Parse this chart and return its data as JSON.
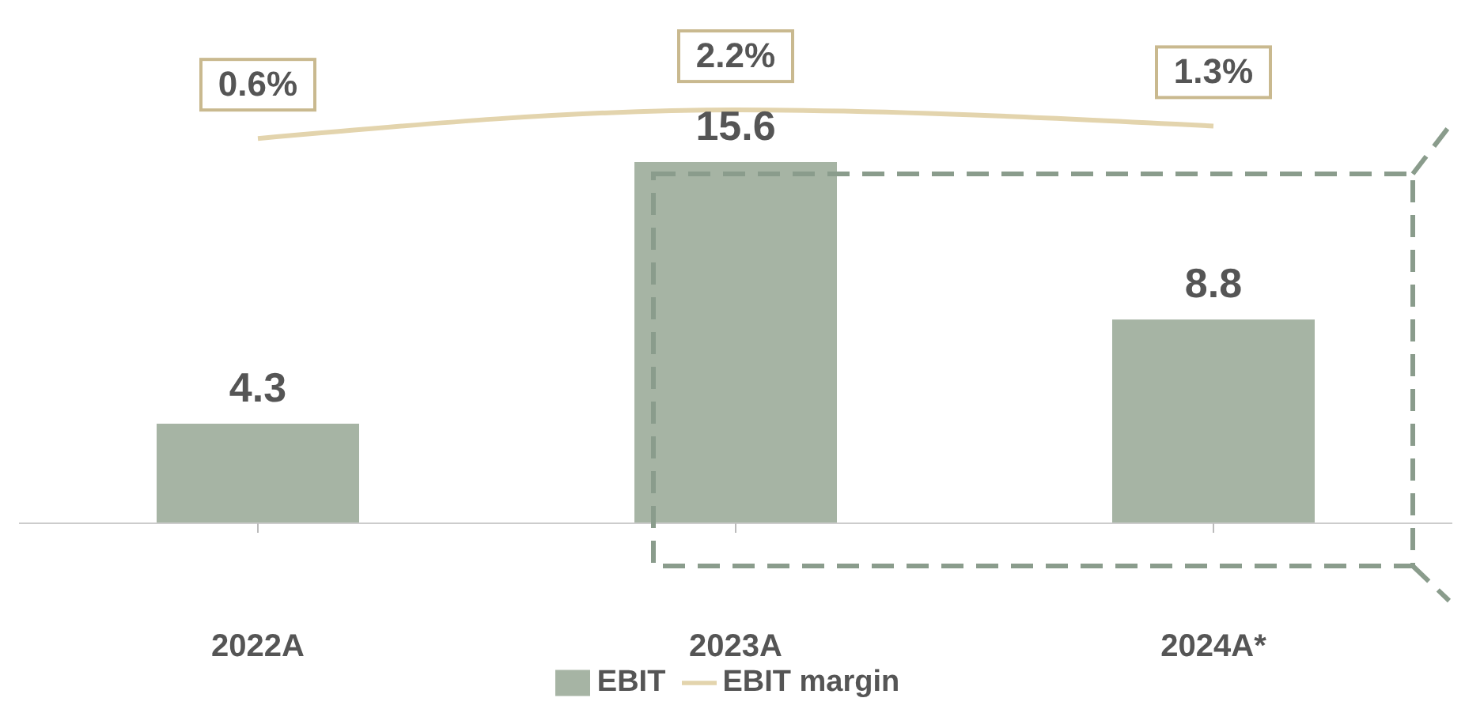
{
  "chart_data": {
    "type": "bar",
    "categories": [
      "2022A",
      "2023A",
      "2024A*"
    ],
    "series": [
      {
        "name": "EBIT",
        "color": "#a6b4a4",
        "values": [
          4.3,
          15.6,
          8.8
        ]
      },
      {
        "name": "EBIT margin",
        "type": "line",
        "axis": "y2",
        "color": "#e3d4ad",
        "values": [
          0.6,
          2.2,
          1.3
        ],
        "value_labels": [
          "0.6%",
          "2.2%",
          "1.3%"
        ]
      }
    ],
    "data_labels": true,
    "ylim": [
      0,
      20
    ],
    "y2lim": [
      -21,
      5
    ],
    "tick_labels": "x",
    "legend": "bottom",
    "marker": "none"
  }
}
